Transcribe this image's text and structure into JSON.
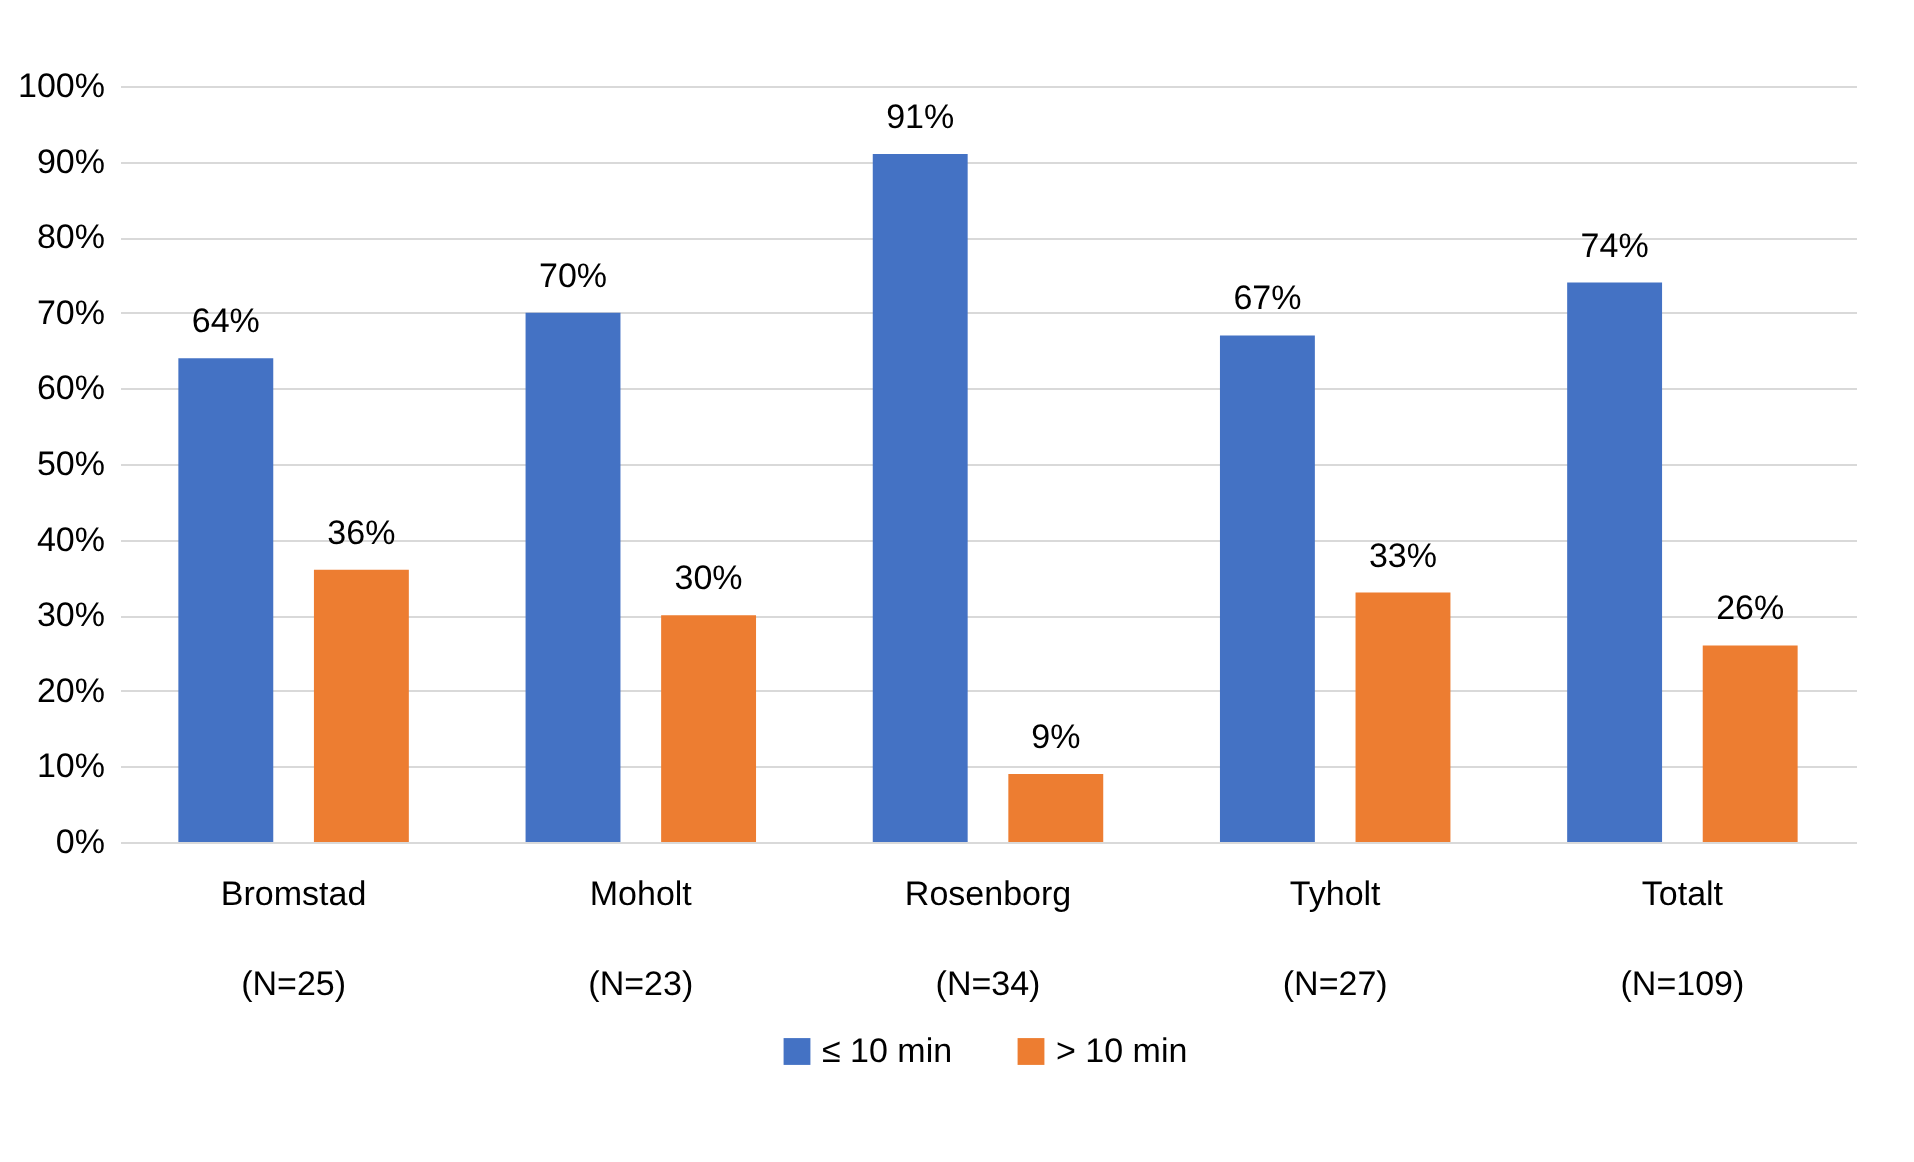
{
  "chart_data": {
    "type": "bar",
    "categories": [
      "Bromstad\n(N=25)",
      "Moholt\n(N=23)",
      "Rosenborg\n(N=34)",
      "Tyholt\n(N=27)",
      "Totalt\n(N=109)"
    ],
    "series": [
      {
        "name": "≤ 10 min",
        "color": "#4472c4",
        "values": [
          64,
          70,
          91,
          67,
          74
        ],
        "value_labels": [
          "64%",
          "70%",
          "91%",
          "67%",
          "74%"
        ]
      },
      {
        "name": "> 10 min",
        "color": "#ed7d31",
        "values": [
          36,
          30,
          9,
          33,
          26
        ],
        "value_labels": [
          "36%",
          "30%",
          "9%",
          "33%",
          "26%"
        ]
      }
    ],
    "ylim": [
      0,
      100
    ],
    "yticks": [
      {
        "value": 0,
        "label": "0%"
      },
      {
        "value": 10,
        "label": "10%"
      },
      {
        "value": 20,
        "label": "20%"
      },
      {
        "value": 30,
        "label": "30%"
      },
      {
        "value": 40,
        "label": "40%"
      },
      {
        "value": 50,
        "label": "50%"
      },
      {
        "value": 60,
        "label": "60%"
      },
      {
        "value": 70,
        "label": "70%"
      },
      {
        "value": 80,
        "label": "80%"
      },
      {
        "value": 90,
        "label": "90%"
      },
      {
        "value": 100,
        "label": "100%"
      }
    ],
    "grid": true,
    "legend": "bottom"
  }
}
